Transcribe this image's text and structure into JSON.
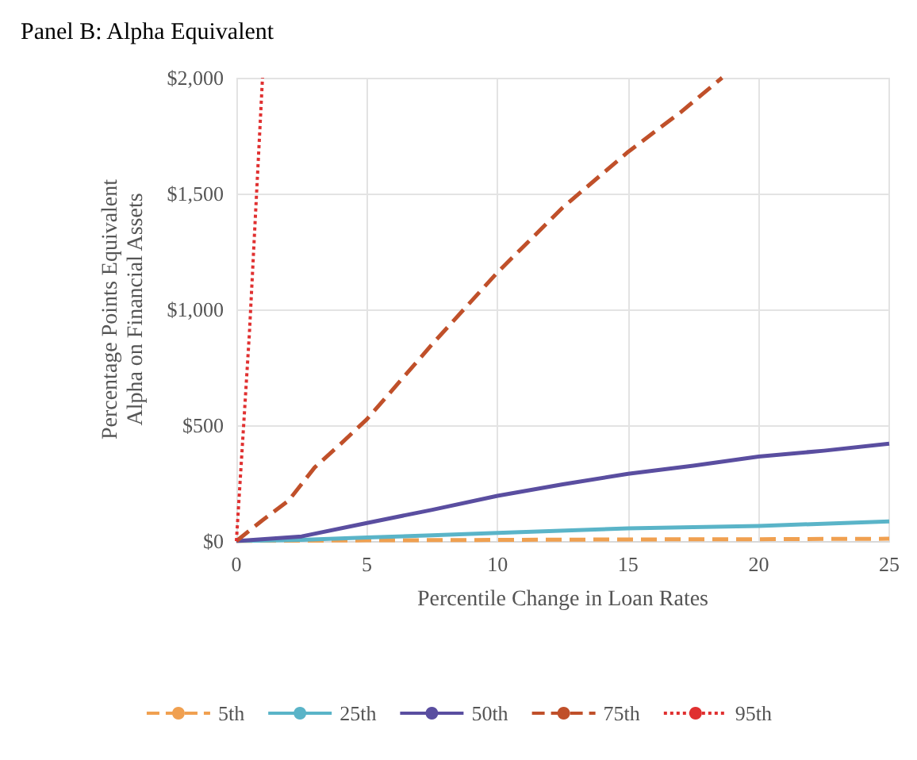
{
  "chart_data": {
    "type": "line",
    "title": "Panel B: Alpha Equivalent",
    "xlabel": "Percentile Change in Loan Rates",
    "ylabel": "Percentage Points Equivalent\nAlpha on Financial Assets",
    "xlim": [
      0,
      25
    ],
    "xticks": [
      0,
      5,
      10,
      15,
      20,
      25
    ],
    "ylim": [
      0,
      2000
    ],
    "yticks": [
      {
        "value": 0,
        "label": "$0"
      },
      {
        "value": 500,
        "label": "$500"
      },
      {
        "value": 1000,
        "label": "$1,000"
      },
      {
        "value": 1500,
        "label": "$1,500"
      },
      {
        "value": 2000,
        "label": "$2,000"
      }
    ],
    "grid": true,
    "legend": "bottom",
    "marker": "none",
    "series": [
      {
        "name": "5th",
        "color": "#f0a050",
        "line_style": "dashed",
        "x": [
          0,
          5,
          10,
          15,
          20,
          25
        ],
        "values": [
          0,
          3,
          5,
          7,
          8,
          10
        ]
      },
      {
        "name": "25th",
        "color": "#5ab4c8",
        "line_style": "solid",
        "x": [
          0,
          2.5,
          5,
          7.5,
          10,
          15,
          20,
          25
        ],
        "values": [
          0,
          5,
          15,
          25,
          35,
          55,
          65,
          85
        ]
      },
      {
        "name": "50th",
        "color": "#5a4ea0",
        "line_style": "solid",
        "x": [
          0,
          2.5,
          5,
          7.5,
          10,
          12.5,
          15,
          17.5,
          20,
          22.5,
          25
        ],
        "values": [
          0,
          20,
          78,
          135,
          195,
          245,
          290,
          325,
          365,
          390,
          420
        ]
      },
      {
        "name": "75th",
        "color": "#c0502a",
        "line_style": "dashed",
        "x": [
          0,
          1,
          2,
          3,
          4,
          5,
          7.5,
          10,
          12.5,
          15,
          17,
          18.6
        ],
        "values": [
          0,
          90,
          175,
          318,
          420,
          526,
          850,
          1160,
          1440,
          1680,
          1850,
          2000
        ]
      },
      {
        "name": "95th",
        "color": "#e03030",
        "line_style": "dotted",
        "x": [
          0,
          0.5,
          1
        ],
        "values": [
          0,
          900,
          2000
        ]
      }
    ]
  }
}
